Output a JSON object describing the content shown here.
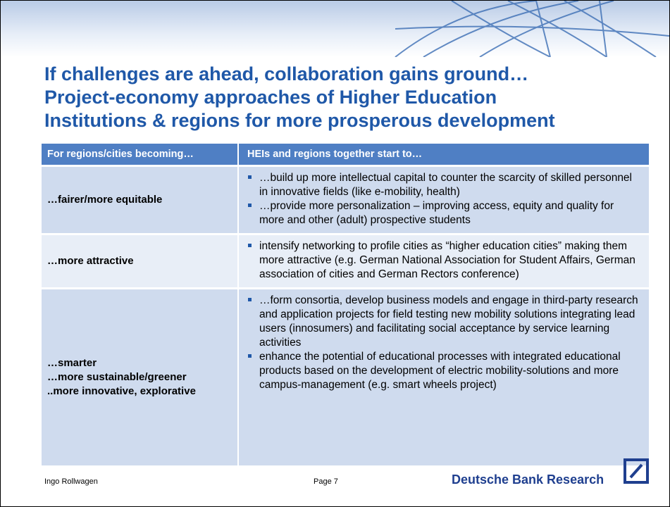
{
  "title": {
    "lines": [
      "If challenges are ahead, collaboration gains ground…",
      "Project-economy approaches of Higher Education",
      "Institutions & regions for more prosperous development"
    ]
  },
  "table": {
    "header": [
      "For regions/cities becoming…",
      "HEIs and regions together start to…"
    ],
    "rows": [
      {
        "left": [
          "…fairer/more equitable"
        ],
        "bullets": [
          "…build up more intellectual capital to counter the scarcity of skilled personnel in innovative fields (like e-mobility, health)",
          "…provide more personalization – improving access, equity and quality for more and other (adult) prospective students"
        ]
      },
      {
        "left": [
          "…more attractive"
        ],
        "bullets": [
          "intensify networking to profile cities as “higher education cities” making them more attractive (e.g. German National Association for Student Affairs, German association of cities and German Rectors conference)"
        ]
      },
      {
        "left": [
          "…smarter",
          "…more sustainable/greener",
          "..more innovative, explorative"
        ],
        "bullets": [
          "…form consortia, develop business models and engage in third-party research and application projects for field testing new mobility solutions integrating lead users (innosumers) and facilitating social acceptance by service learning activities",
          "enhance the potential of educational processes with integrated educational products  based on the development of electric mobility-solutions and more campus-management (e.g. smart wheels project)"
        ]
      }
    ]
  },
  "footer": {
    "author": "Ingo Rollwagen",
    "page": "Page 7",
    "brand": "Deutsche Bank Research"
  }
}
